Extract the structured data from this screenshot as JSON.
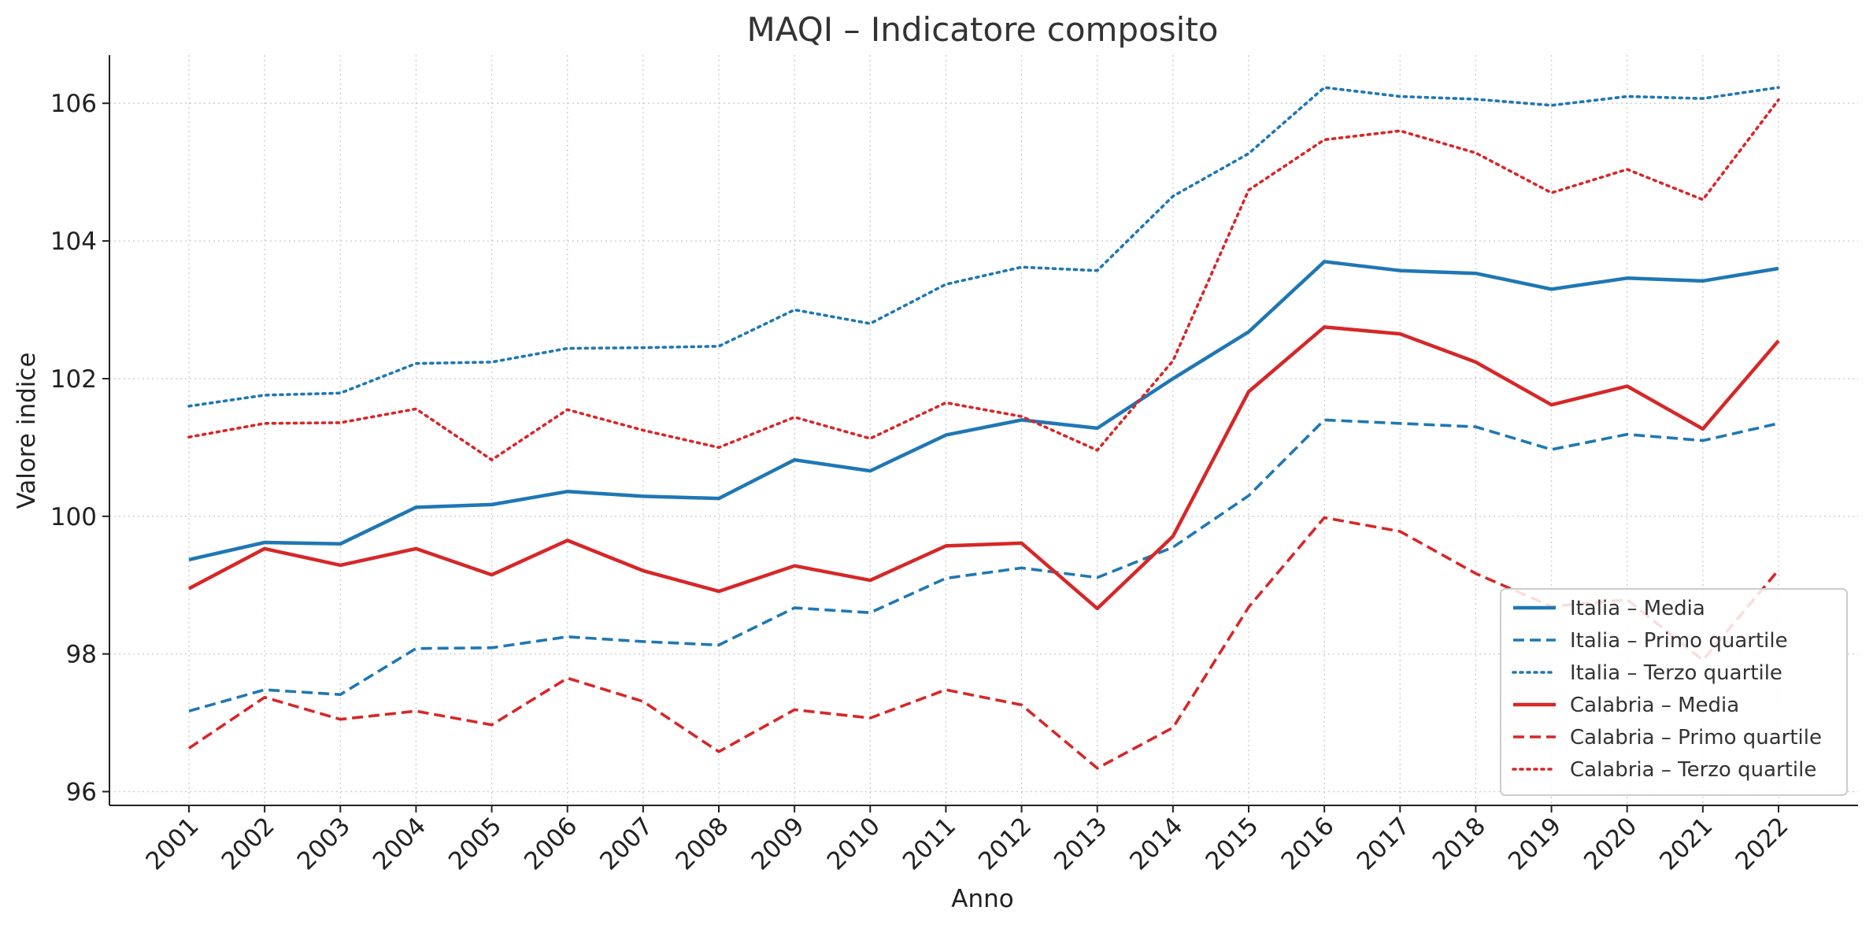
{
  "chart_data": {
    "type": "line",
    "title": "MAQI – Indicatore composito",
    "xlabel": "Anno",
    "ylabel": "Valore indice",
    "categories": [
      "2001",
      "2002",
      "2003",
      "2004",
      "2005",
      "2006",
      "2007",
      "2008",
      "2009",
      "2010",
      "2011",
      "2012",
      "2013",
      "2014",
      "2015",
      "2016",
      "2017",
      "2018",
      "2019",
      "2020",
      "2021",
      "2022"
    ],
    "ylim": [
      95.8,
      106.7
    ],
    "yticks": [
      "96",
      "98",
      "100",
      "102",
      "104",
      "106"
    ],
    "grid": true,
    "legend_position": "lower-right",
    "series": [
      {
        "name": "Italia – Media",
        "color": "#1f77b4",
        "style": "solid",
        "values": [
          99.37,
          99.62,
          99.6,
          100.13,
          100.17,
          100.36,
          100.29,
          100.26,
          100.82,
          100.66,
          101.18,
          101.4,
          101.28,
          102.0,
          102.68,
          103.7,
          103.57,
          103.53,
          103.3,
          103.46,
          103.42,
          103.6
        ]
      },
      {
        "name": "Italia – Primo quartile",
        "color": "#1f77b4",
        "style": "dashed",
        "values": [
          97.17,
          97.48,
          97.41,
          98.08,
          98.09,
          98.25,
          98.18,
          98.13,
          98.67,
          98.6,
          99.1,
          99.25,
          99.11,
          99.55,
          100.3,
          101.4,
          101.35,
          101.3,
          100.97,
          101.19,
          101.1,
          101.35
        ]
      },
      {
        "name": "Italia – Terzo quartile",
        "color": "#1f77b4",
        "style": "dotted",
        "values": [
          101.6,
          101.76,
          101.79,
          102.22,
          102.24,
          102.44,
          102.45,
          102.47,
          103.0,
          102.8,
          103.37,
          103.62,
          103.57,
          104.65,
          105.27,
          106.23,
          106.1,
          106.06,
          105.97,
          106.1,
          106.07,
          106.23
        ]
      },
      {
        "name": "Calabria – Media",
        "color": "#d62728",
        "style": "solid",
        "values": [
          98.95,
          99.53,
          99.29,
          99.53,
          99.15,
          99.65,
          99.21,
          98.91,
          99.28,
          99.07,
          99.57,
          99.61,
          98.66,
          99.71,
          101.81,
          102.75,
          102.65,
          102.24,
          101.62,
          101.89,
          101.27,
          102.55
        ]
      },
      {
        "name": "Calabria – Primo quartile",
        "color": "#d62728",
        "style": "dashed",
        "values": [
          96.63,
          97.37,
          97.05,
          97.17,
          96.97,
          97.65,
          97.31,
          96.58,
          97.19,
          97.07,
          97.48,
          97.26,
          96.34,
          96.93,
          98.68,
          99.98,
          99.78,
          99.17,
          98.69,
          98.79,
          97.91,
          99.22
        ]
      },
      {
        "name": "Calabria – Terzo quartile",
        "color": "#d62728",
        "style": "dotted",
        "values": [
          101.15,
          101.35,
          101.36,
          101.56,
          100.82,
          101.55,
          101.25,
          101.0,
          101.44,
          101.13,
          101.65,
          101.45,
          100.96,
          102.26,
          104.74,
          105.47,
          105.6,
          105.28,
          104.7,
          105.04,
          104.6,
          106.05
        ]
      }
    ]
  }
}
